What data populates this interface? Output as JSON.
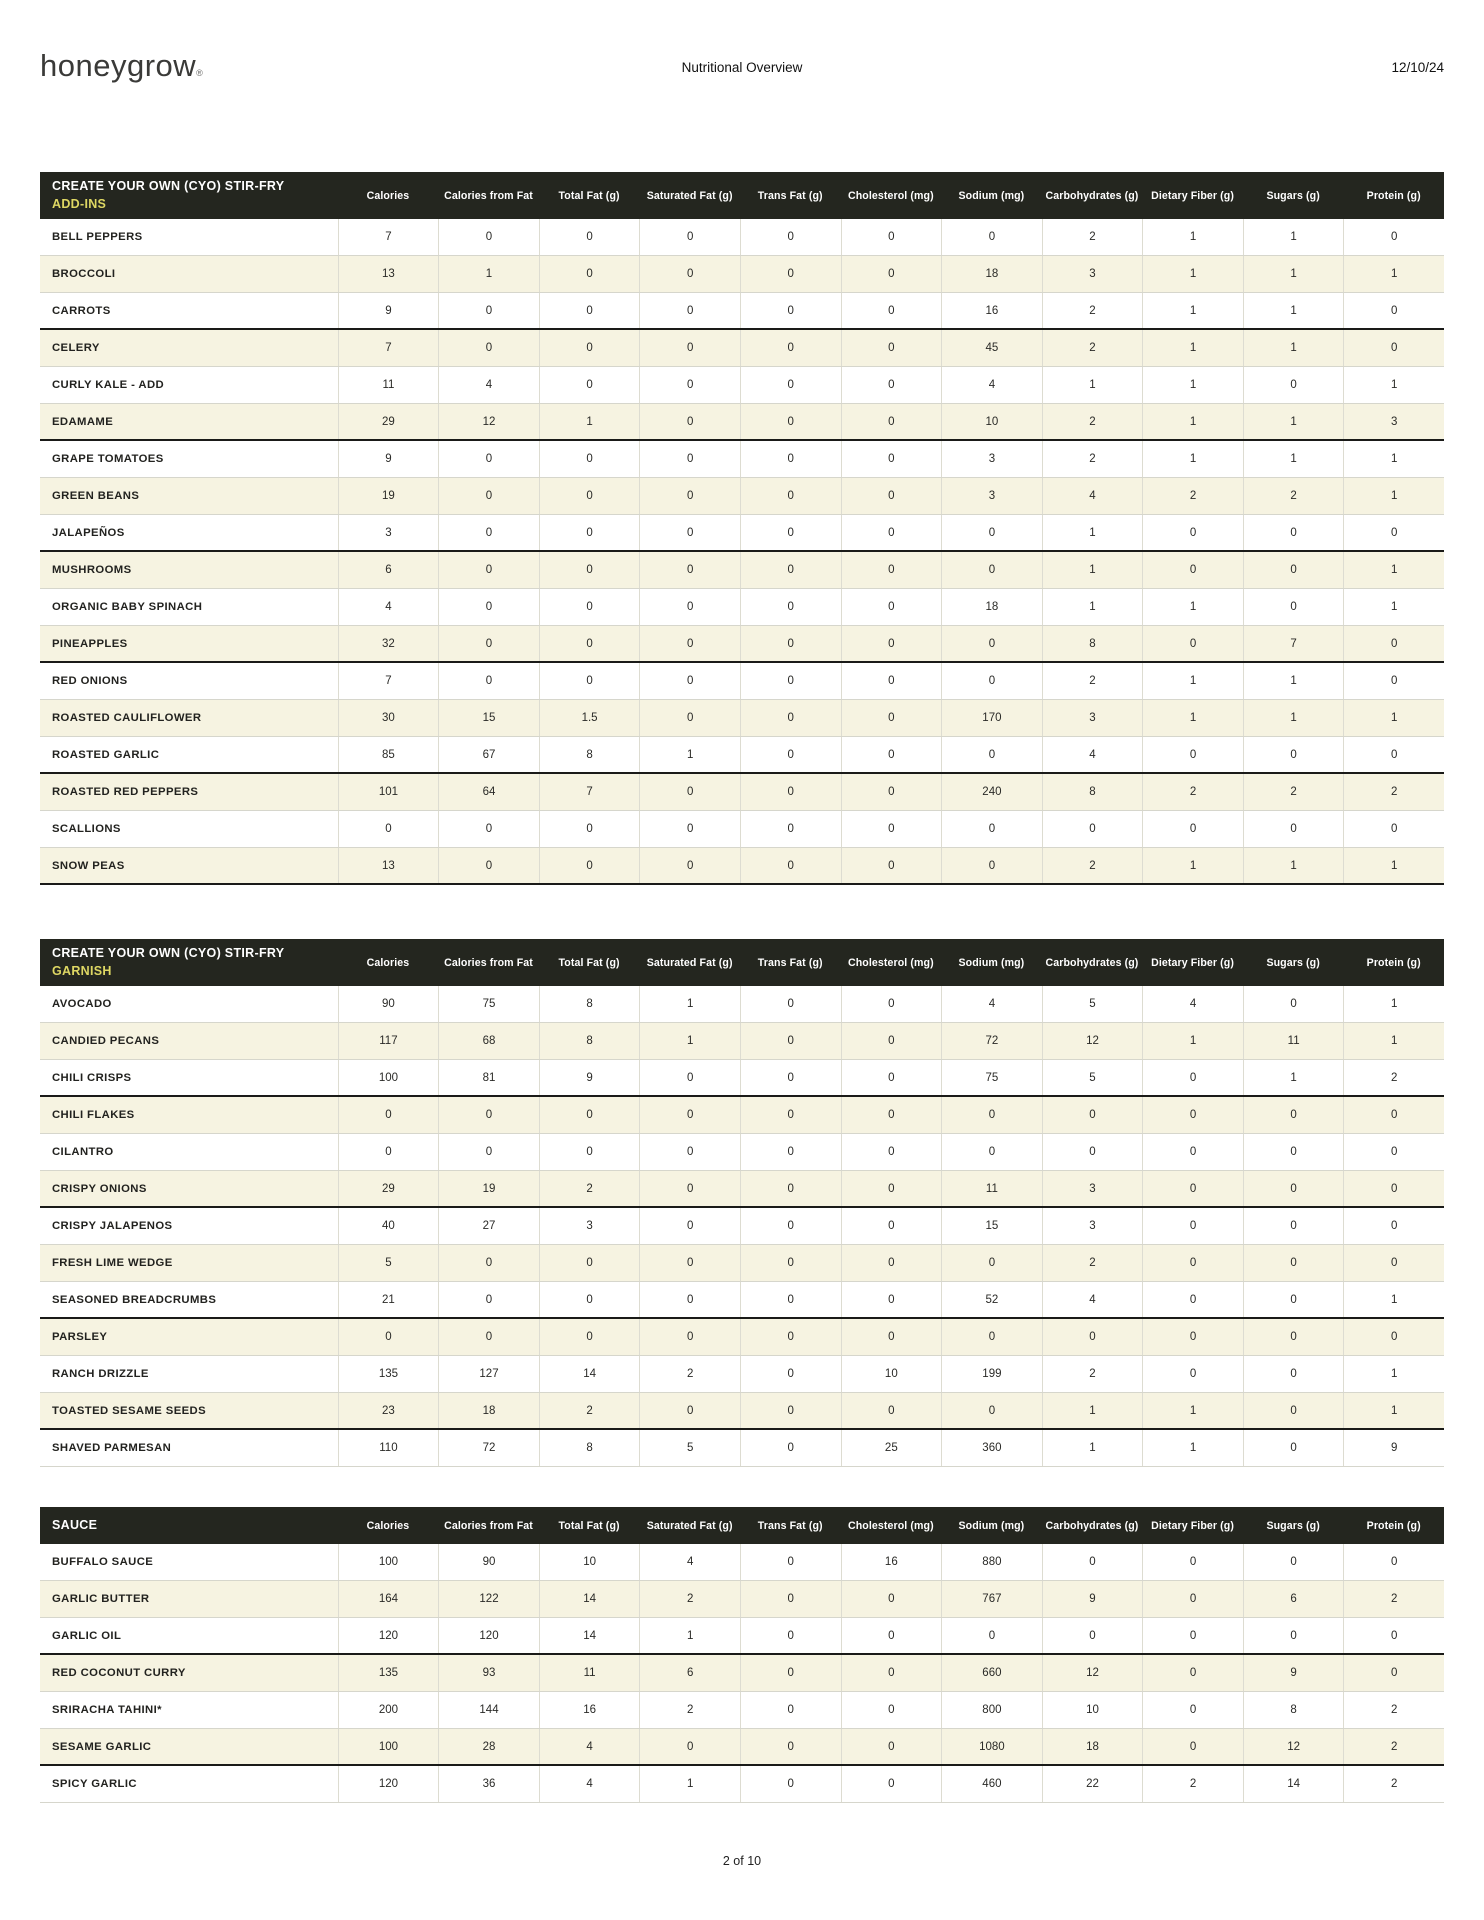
{
  "page": {
    "logo": "honeygrow",
    "logo_mark": "®",
    "title": "Nutritional Overview",
    "date": "12/10/24",
    "footer": "2 of 10"
  },
  "colors": {
    "table_header_bg": "#24261f",
    "accent_yellow": "#ded763",
    "row_stripe": "#f6f3e1"
  },
  "columns": [
    "Calories",
    "Calories from Fat",
    "Total Fat (g)",
    "Saturated Fat (g)",
    "Trans Fat (g)",
    "Cholesterol (mg)",
    "Sodium (mg)",
    "Carbohydrates (g)",
    "Dietary Fiber (g)",
    "Sugars (g)",
    "Protein (g)"
  ],
  "tables": [
    {
      "title_line1": "CREATE YOUR OWN (CYO) STIR-FRY",
      "title_line2": "ADD-INS",
      "rows": [
        {
          "name": "BELL PEPPERS",
          "values": [
            7,
            0,
            0,
            0,
            0,
            0,
            0,
            2,
            1,
            1,
            0
          ]
        },
        {
          "name": "BROCCOLI",
          "values": [
            13,
            1,
            0,
            0,
            0,
            0,
            18,
            3,
            1,
            1,
            1
          ]
        },
        {
          "name": "CARROTS",
          "values": [
            9,
            0,
            0,
            0,
            0,
            0,
            16,
            2,
            1,
            1,
            0
          ]
        },
        {
          "name": "CELERY",
          "values": [
            7,
            0,
            0,
            0,
            0,
            0,
            45,
            2,
            1,
            1,
            0
          ]
        },
        {
          "name": "CURLY KALE - ADD",
          "values": [
            11,
            4,
            0,
            0,
            0,
            0,
            4,
            1,
            1,
            0,
            1
          ]
        },
        {
          "name": "EDAMAME",
          "values": [
            29,
            12,
            1,
            0,
            0,
            0,
            10,
            2,
            1,
            1,
            3
          ]
        },
        {
          "name": "GRAPE TOMATOES",
          "values": [
            9,
            0,
            0,
            0,
            0,
            0,
            3,
            2,
            1,
            1,
            1
          ]
        },
        {
          "name": "GREEN BEANS",
          "values": [
            19,
            0,
            0,
            0,
            0,
            0,
            3,
            4,
            2,
            2,
            1
          ]
        },
        {
          "name": "JALAPEÑOS",
          "values": [
            3,
            0,
            0,
            0,
            0,
            0,
            0,
            1,
            0,
            0,
            0
          ]
        },
        {
          "name": "MUSHROOMS",
          "values": [
            6,
            0,
            0,
            0,
            0,
            0,
            0,
            1,
            0,
            0,
            1
          ]
        },
        {
          "name": "ORGANIC BABY SPINACH",
          "values": [
            4,
            0,
            0,
            0,
            0,
            0,
            18,
            1,
            1,
            0,
            1
          ]
        },
        {
          "name": "PINEAPPLES",
          "values": [
            32,
            0,
            0,
            0,
            0,
            0,
            0,
            8,
            0,
            7,
            0
          ]
        },
        {
          "name": "RED ONIONS",
          "values": [
            7,
            0,
            0,
            0,
            0,
            0,
            0,
            2,
            1,
            1,
            0
          ]
        },
        {
          "name": "ROASTED CAULIFLOWER",
          "values": [
            30,
            15,
            1.5,
            0,
            0,
            0,
            170,
            3,
            1,
            1,
            1
          ]
        },
        {
          "name": "ROASTED GARLIC",
          "values": [
            85,
            67,
            8,
            1,
            0,
            0,
            0,
            4,
            0,
            0,
            0
          ]
        },
        {
          "name": "ROASTED RED PEPPERS",
          "values": [
            101,
            64,
            7,
            0,
            0,
            0,
            240,
            8,
            2,
            2,
            2
          ]
        },
        {
          "name": "SCALLIONS",
          "values": [
            0,
            0,
            0,
            0,
            0,
            0,
            0,
            0,
            0,
            0,
            0
          ]
        },
        {
          "name": "SNOW PEAS",
          "values": [
            13,
            0,
            0,
            0,
            0,
            0,
            0,
            2,
            1,
            1,
            1
          ]
        }
      ]
    },
    {
      "title_line1": "CREATE YOUR OWN (CYO) STIR-FRY",
      "title_line2": "GARNISH",
      "rows": [
        {
          "name": "AVOCADO",
          "values": [
            90,
            75,
            8,
            1,
            0,
            0,
            4,
            5,
            4,
            0,
            1
          ]
        },
        {
          "name": "CANDIED PECANS",
          "values": [
            117,
            68,
            8,
            1,
            0,
            0,
            72,
            12,
            1,
            11,
            1
          ]
        },
        {
          "name": "CHILI CRISPS",
          "values": [
            100,
            81,
            9,
            0,
            0,
            0,
            75,
            5,
            0,
            1,
            2
          ]
        },
        {
          "name": "CHILI FLAKES",
          "values": [
            0,
            0,
            0,
            0,
            0,
            0,
            0,
            0,
            0,
            0,
            0
          ]
        },
        {
          "name": "CILANTRO",
          "values": [
            0,
            0,
            0,
            0,
            0,
            0,
            0,
            0,
            0,
            0,
            0
          ]
        },
        {
          "name": "CRISPY ONIONS",
          "values": [
            29,
            19,
            2,
            0,
            0,
            0,
            11,
            3,
            0,
            0,
            0
          ]
        },
        {
          "name": "CRISPY JALAPENOS",
          "values": [
            40,
            27,
            3,
            0,
            0,
            0,
            15,
            3,
            0,
            0,
            0
          ]
        },
        {
          "name": "FRESH LIME WEDGE",
          "values": [
            5,
            0,
            0,
            0,
            0,
            0,
            0,
            2,
            0,
            0,
            0
          ]
        },
        {
          "name": "SEASONED BREADCRUMBS",
          "values": [
            21,
            0,
            0,
            0,
            0,
            0,
            52,
            4,
            0,
            0,
            1
          ]
        },
        {
          "name": "PARSLEY",
          "values": [
            0,
            0,
            0,
            0,
            0,
            0,
            0,
            0,
            0,
            0,
            0
          ]
        },
        {
          "name": "RANCH DRIZZLE",
          "values": [
            135,
            127,
            14,
            2,
            0,
            10,
            199,
            2,
            0,
            0,
            1
          ]
        },
        {
          "name": "TOASTED SESAME SEEDS",
          "values": [
            23,
            18,
            2,
            0,
            0,
            0,
            0,
            1,
            1,
            0,
            1
          ]
        },
        {
          "name": "SHAVED PARMESAN",
          "values": [
            110,
            72,
            8,
            5,
            0,
            25,
            360,
            1,
            1,
            0,
            9
          ]
        }
      ]
    },
    {
      "title_line1": "SAUCE",
      "title_line2": "",
      "rows": [
        {
          "name": "BUFFALO SAUCE",
          "values": [
            100,
            90,
            10,
            4,
            0,
            16,
            880,
            0,
            0,
            0,
            0
          ]
        },
        {
          "name": "GARLIC BUTTER",
          "values": [
            164,
            122,
            14,
            2,
            0,
            0,
            767,
            9,
            0,
            6,
            2
          ]
        },
        {
          "name": "GARLIC OIL",
          "values": [
            120,
            120,
            14,
            1,
            0,
            0,
            0,
            0,
            0,
            0,
            0
          ]
        },
        {
          "name": "RED COCONUT CURRY",
          "values": [
            135,
            93,
            11,
            6,
            0,
            0,
            660,
            12,
            0,
            9,
            0
          ]
        },
        {
          "name": "SRIRACHA TAHINI*",
          "values": [
            200,
            144,
            16,
            2,
            0,
            0,
            800,
            10,
            0,
            8,
            2
          ]
        },
        {
          "name": "SESAME GARLIC",
          "values": [
            100,
            28,
            4,
            0,
            0,
            0,
            1080,
            18,
            0,
            12,
            2
          ]
        },
        {
          "name": "SPICY GARLIC",
          "values": [
            120,
            36,
            4,
            1,
            0,
            0,
            460,
            22,
            2,
            14,
            2
          ]
        }
      ]
    }
  ]
}
